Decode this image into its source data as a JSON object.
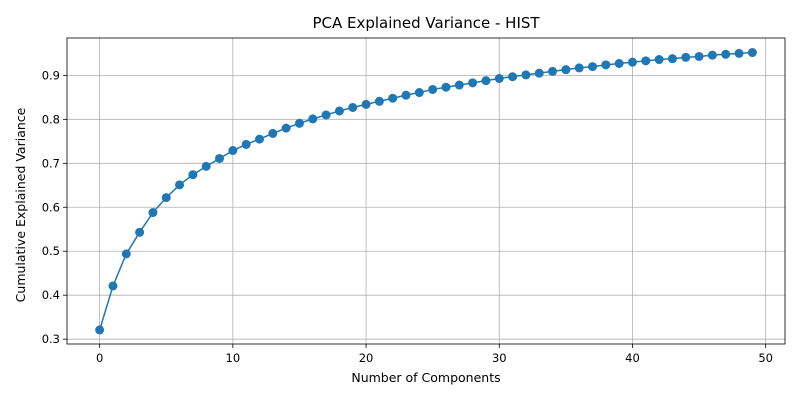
{
  "chart_data": {
    "type": "line",
    "title": "PCA Explained Variance - HIST",
    "xlabel": "Number of Components",
    "ylabel": "Cumulative Explained Variance",
    "xlim": [
      -2.45,
      51.45
    ],
    "ylim": [
      0.289,
      0.985
    ],
    "xticks": [
      0,
      10,
      20,
      30,
      40,
      50
    ],
    "yticks": [
      0.3,
      0.4,
      0.5,
      0.6,
      0.7,
      0.8,
      0.9
    ],
    "grid": true,
    "marker": "circle",
    "color": "#1f77b4",
    "x": [
      0,
      1,
      2,
      3,
      4,
      5,
      6,
      7,
      8,
      9,
      10,
      11,
      12,
      13,
      14,
      15,
      16,
      17,
      18,
      19,
      20,
      21,
      22,
      23,
      24,
      25,
      26,
      27,
      28,
      29,
      30,
      31,
      32,
      33,
      34,
      35,
      36,
      37,
      38,
      39,
      40,
      41,
      42,
      43,
      44,
      45,
      46,
      47,
      48,
      49
    ],
    "y": [
      0.321,
      0.421,
      0.494,
      0.543,
      0.588,
      0.622,
      0.651,
      0.674,
      0.693,
      0.711,
      0.729,
      0.743,
      0.755,
      0.768,
      0.78,
      0.791,
      0.801,
      0.81,
      0.819,
      0.827,
      0.834,
      0.841,
      0.848,
      0.855,
      0.861,
      0.868,
      0.873,
      0.878,
      0.883,
      0.888,
      0.893,
      0.897,
      0.901,
      0.905,
      0.909,
      0.913,
      0.917,
      0.92,
      0.924,
      0.927,
      0.93,
      0.933,
      0.936,
      0.938,
      0.941,
      0.943,
      0.946,
      0.948,
      0.95,
      0.952
    ]
  }
}
